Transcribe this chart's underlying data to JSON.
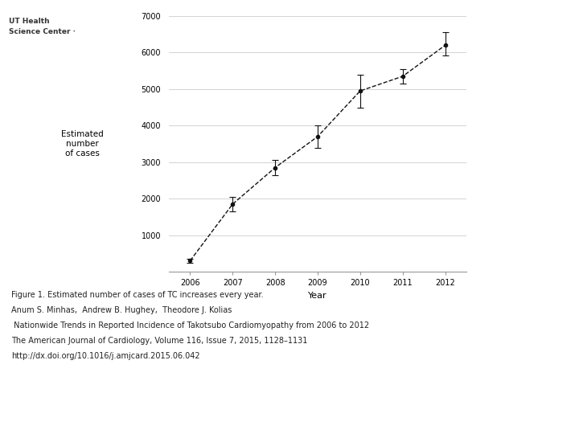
{
  "years": [
    2006,
    2007,
    2008,
    2009,
    2010,
    2011,
    2012
  ],
  "values": [
    300,
    1850,
    2850,
    3700,
    4950,
    5350,
    6200
  ],
  "yerr_lower": [
    50,
    200,
    200,
    300,
    450,
    200,
    280
  ],
  "yerr_upper": [
    50,
    200,
    200,
    300,
    450,
    200,
    350
  ],
  "xlabel": "Year",
  "ylabel": "Estimated\nnumber\nof cases",
  "ylim": [
    0,
    7000
  ],
  "yticks": [
    0,
    1000,
    2000,
    3000,
    4000,
    5000,
    6000,
    7000
  ],
  "xlim": [
    2005.5,
    2012.5
  ],
  "teal_color": "#2e9e96",
  "bg_color": "#eeeee8",
  "line_color": "#111111",
  "caption_line1": "Figure 1. Estimated number of cases of TC increases every year.",
  "caption_line2": "Anum S. Minhas,  Andrew B. Hughey,  Theodore J. Kolias",
  "caption_line3": " Nationwide Trends in Reported Incidence of Takotsubo Cardiomyopathy from 2006 to 2012",
  "caption_line4": "The American Journal of Cardiology, Volume 116, Issue 7, 2015, 1128–1131",
  "caption_line5": "http://dx.doi.org/10.1016/j.amjcard.2015.06.042"
}
